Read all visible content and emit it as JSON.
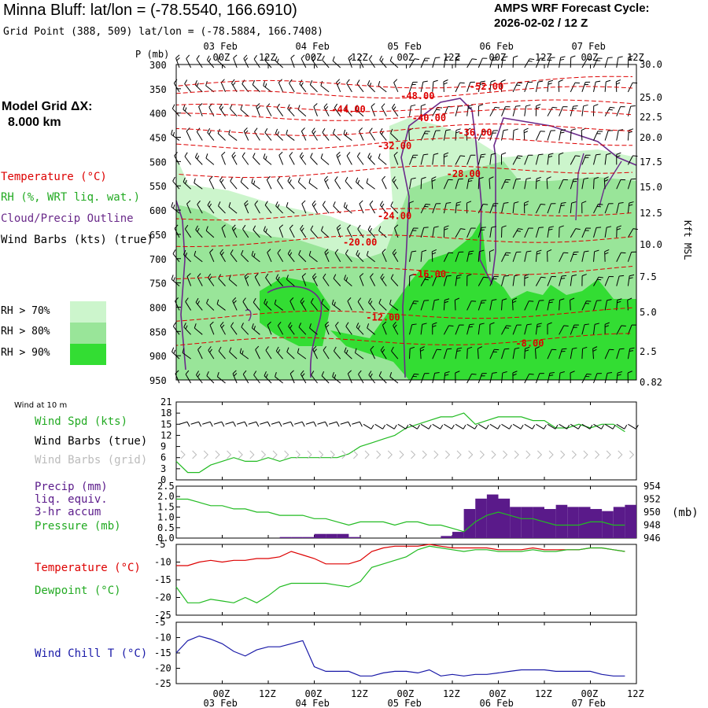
{
  "header": {
    "title": "Minna Bluff:  lat/lon = (-78.5540, 166.6910)",
    "grid_point": "Grid Point (388, 509) lat/lon = (-78.5884, 166.7408)",
    "cycle_label": "AMPS WRF Forecast Cycle:",
    "cycle_value": "2026-02-02 / 12  Z"
  },
  "sidebar": {
    "grid_label": "Model Grid ΔX:",
    "grid_value": "8.000 km",
    "legend": [
      {
        "label": "Temperature (°C)",
        "color": "#dd0000"
      },
      {
        "label": "RH (%, WRT liq. wat.)",
        "color": "#22aa22"
      },
      {
        "label": "Cloud/Precip Outline",
        "color": "#6a2a8a"
      },
      {
        "label": "Wind Barbs (kts) (true)",
        "color": "#000000"
      }
    ],
    "rh_legend": [
      {
        "label": "RH > 70%",
        "color": "#ccf5cc"
      },
      {
        "label": "RH > 80%",
        "color": "#99e599"
      },
      {
        "label": "RH > 90%",
        "color": "#33dd33"
      }
    ]
  },
  "colors": {
    "temp": "#dd0000",
    "dew": "#22bb22",
    "wind": "#1a1aa8",
    "precip": "#5a1a8a",
    "cloud": "#6a2a8a",
    "rh70": "#ccf5cc",
    "rh80": "#99e599",
    "rh90": "#33dd33"
  },
  "chart_data": [
    {
      "type": "heatmap",
      "id": "cross_section",
      "p_axis_title": "P (mb)",
      "p_ticks": [
        300,
        350,
        400,
        450,
        500,
        550,
        600,
        650,
        700,
        750,
        800,
        850,
        900,
        950
      ],
      "kft_ticks": [
        "30.0",
        "25.0",
        "22.5",
        "20.0",
        "17.5",
        "15.0",
        "12.5",
        "10.0",
        "7.5",
        "5.0",
        "2.5",
        "0.82"
      ],
      "kft_axis_title": "Kft MSL",
      "time_ticks": [
        "00Z",
        "12Z",
        "00Z",
        "12Z",
        "00Z",
        "12Z",
        "00Z",
        "12Z",
        "00Z",
        "12Z"
      ],
      "date_labels": [
        "03 Feb",
        "04 Feb",
        "05 Feb",
        "06 Feb",
        "07 Feb"
      ],
      "isotherms": [
        {
          "label": "-52.00",
          "t": 27,
          "p": 345
        },
        {
          "label": "-48.00",
          "t": 21,
          "p": 365
        },
        {
          "label": "-44.00",
          "t": 15,
          "p": 392
        },
        {
          "label": "-40.00",
          "t": 22,
          "p": 410
        },
        {
          "label": "-36.00",
          "t": 26,
          "p": 440
        },
        {
          "label": "-32.00",
          "t": 19,
          "p": 468
        },
        {
          "label": "-28.00",
          "t": 25,
          "p": 525
        },
        {
          "label": "-24.00",
          "t": 19,
          "p": 612
        },
        {
          "label": "-20.00",
          "t": 16,
          "p": 666
        },
        {
          "label": "-16.00",
          "t": 22,
          "p": 732
        },
        {
          "label": "-12.00",
          "t": 18,
          "p": 821
        },
        {
          "label": "-8.00",
          "t": 31,
          "p": 875
        }
      ]
    },
    {
      "type": "line",
      "id": "wind10m",
      "panel_label": "Wind at 10 m",
      "series_labels": [
        "Wind Spd (kts)",
        "Wind Barbs (true)",
        "Wind Barbs (grid)"
      ],
      "ylim": [
        0,
        21
      ],
      "yticks": [
        0,
        3,
        6,
        9,
        12,
        15,
        18,
        21
      ],
      "t": [
        0,
        3,
        6,
        9,
        12,
        15,
        18,
        21,
        24,
        27,
        30,
        33,
        36,
        39,
        42,
        45,
        48,
        51,
        54,
        57,
        60,
        63,
        66,
        69,
        72,
        75,
        78,
        81,
        84,
        87,
        90,
        93,
        96,
        99,
        102,
        105,
        108,
        111,
        114,
        117
      ],
      "speed": [
        5,
        2,
        2,
        4,
        5,
        6,
        5,
        5,
        6,
        5,
        6,
        6,
        6,
        6,
        6,
        7,
        9,
        10,
        11,
        12,
        14,
        15,
        16,
        17,
        17,
        18,
        15,
        16,
        17,
        17,
        17,
        16,
        16,
        14,
        14,
        15,
        14,
        15,
        15,
        13
      ]
    },
    {
      "type": "bar",
      "id": "precip_pressure",
      "series_labels": [
        "Precip (mm)",
        "liq. equiv.",
        "3-hr accum",
        "Pressure (mb)"
      ],
      "right_unit": "(mb)",
      "ylim_precip": [
        0,
        2.5
      ],
      "yticks_precip": [
        "0.0",
        "0.5",
        "1.0",
        "1.5",
        "2.0",
        "2.5"
      ],
      "ylim_pressure": [
        946,
        954
      ],
      "yticks_pressure": [
        946,
        948,
        950,
        952,
        954
      ],
      "t": [
        0,
        3,
        6,
        9,
        12,
        15,
        18,
        21,
        24,
        27,
        30,
        33,
        36,
        39,
        42,
        45,
        48,
        51,
        54,
        57,
        60,
        63,
        66,
        69,
        72,
        75,
        78,
        81,
        84,
        87,
        90,
        93,
        96,
        99,
        102,
        105,
        108,
        111,
        114,
        117
      ],
      "precip": [
        0,
        0,
        0,
        0,
        0,
        0,
        0,
        0,
        0,
        0.05,
        0.05,
        0.05,
        0.2,
        0.2,
        0.2,
        0.05,
        0,
        0,
        0,
        0,
        0,
        0,
        0,
        0.1,
        0.3,
        1.4,
        1.9,
        2.1,
        1.9,
        1.5,
        1.5,
        1.5,
        1.4,
        1.6,
        1.5,
        1.5,
        1.4,
        1.3,
        1.5,
        1.6
      ],
      "pressure": [
        952.0,
        952.0,
        951.5,
        951.0,
        951.0,
        950.5,
        950.5,
        950.0,
        950.0,
        949.5,
        949.5,
        949.5,
        949.0,
        949.0,
        948.5,
        948.0,
        948.5,
        948.5,
        948.5,
        948.0,
        948.5,
        948.5,
        948.0,
        948.0,
        947.5,
        947.0,
        948.5,
        949.5,
        950.0,
        949.5,
        949.0,
        949.0,
        948.5,
        948.0,
        948.0,
        948.0,
        948.5,
        948.5,
        948.0,
        948.0
      ]
    },
    {
      "type": "line",
      "id": "temp_dew",
      "series_labels": [
        "Temperature (°C)",
        "Dewpoint (°C)"
      ],
      "ylim": [
        -25,
        -5
      ],
      "yticks": [
        -25,
        -20,
        -15,
        -10,
        -5
      ],
      "t": [
        0,
        3,
        6,
        9,
        12,
        15,
        18,
        21,
        24,
        27,
        30,
        33,
        36,
        39,
        42,
        45,
        48,
        51,
        54,
        57,
        60,
        63,
        66,
        69,
        72,
        75,
        78,
        81,
        84,
        87,
        90,
        93,
        96,
        99,
        102,
        105,
        108,
        111,
        114,
        117
      ],
      "temperature": [
        -11.0,
        -11.0,
        -10.0,
        -9.5,
        -10.0,
        -9.5,
        -9.5,
        -9.0,
        -9.0,
        -8.5,
        -7.0,
        -8.0,
        -9.0,
        -10.5,
        -10.5,
        -10.5,
        -9.5,
        -7.0,
        -6.0,
        -5.5,
        -5.5,
        -5.5,
        -5.0,
        -5.5,
        -6.0,
        -6.0,
        -6.0,
        -6.0,
        -6.5,
        -6.5,
        -6.5,
        -6.0,
        -6.5,
        -6.5,
        -6.5,
        -6.5,
        -6.0,
        -6.0,
        -6.5,
        -7.0
      ],
      "dewpoint": [
        -17.0,
        -21.5,
        -21.5,
        -20.5,
        -21.0,
        -21.5,
        -20.0,
        -21.5,
        -19.5,
        -17.0,
        -16.0,
        -16.0,
        -16.0,
        -16.0,
        -16.5,
        -17.0,
        -15.5,
        -11.5,
        -10.5,
        -9.5,
        -8.5,
        -6.5,
        -5.5,
        -6.0,
        -6.5,
        -7.0,
        -6.5,
        -6.5,
        -7.0,
        -7.0,
        -7.0,
        -6.5,
        -7.0,
        -7.0,
        -6.5,
        -6.5,
        -6.0,
        -6.0,
        -6.5,
        -7.0
      ]
    },
    {
      "type": "line",
      "id": "wind_chill",
      "series_labels": [
        "Wind Chill T (°C)"
      ],
      "ylim": [
        -25,
        -5
      ],
      "yticks": [
        -25,
        -20,
        -15,
        -10,
        -5
      ],
      "t": [
        0,
        3,
        6,
        9,
        12,
        15,
        18,
        21,
        24,
        27,
        30,
        33,
        36,
        39,
        42,
        45,
        48,
        51,
        54,
        57,
        60,
        63,
        66,
        69,
        72,
        75,
        78,
        81,
        84,
        87,
        90,
        93,
        96,
        99,
        102,
        105,
        108,
        111,
        114,
        117
      ],
      "windchill": [
        -15.0,
        -11.0,
        -9.5,
        -10.5,
        -12.0,
        -14.5,
        -16.0,
        -14.0,
        -13.0,
        -13.0,
        -12.0,
        -11.0,
        -19.5,
        -21.0,
        -21.0,
        -21.0,
        -22.5,
        -22.5,
        -21.5,
        -21.0,
        -21.0,
        -21.5,
        -20.5,
        -22.5,
        -22.0,
        -22.5,
        -22.0,
        -22.0,
        -21.5,
        -21.0,
        -20.5,
        -20.5,
        -20.5,
        -21.0,
        -21.0,
        -21.0,
        -21.0,
        -22.0,
        -22.5,
        -22.5
      ]
    }
  ]
}
